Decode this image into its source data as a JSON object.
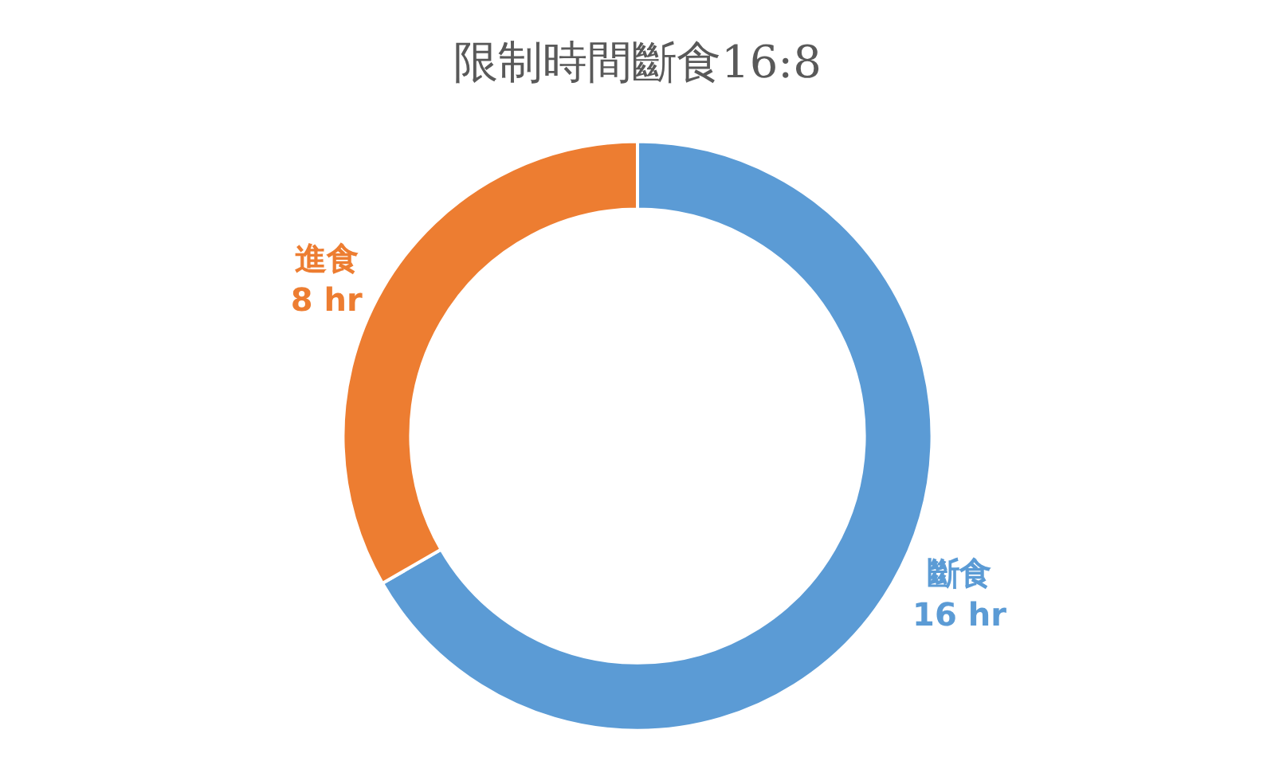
{
  "chart_data": {
    "type": "donut",
    "title": "限制時間斷食16:8",
    "categories": [
      "斷食",
      "進食"
    ],
    "values": [
      16,
      8
    ],
    "value_labels": [
      "16 hr",
      "8 hr"
    ],
    "colors": [
      "#5b9bd5",
      "#ed7d31"
    ],
    "legend": false
  }
}
